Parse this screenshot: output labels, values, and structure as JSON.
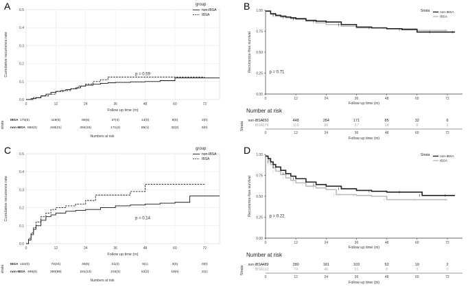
{
  "chart_data": [
    {
      "panel": "A",
      "type": "line",
      "ylabel": "Cumulative recurrence rate",
      "xlabel": "Follow up time (m)",
      "xlim": [
        0,
        78
      ],
      "ylim": [
        0,
        0.5
      ],
      "xticks": [
        0,
        12,
        24,
        36,
        48,
        60,
        72
      ],
      "yticks": [
        "0.0",
        "0.1",
        "0.2",
        "0.3",
        "0.4",
        "0.5"
      ],
      "ytick_values": [
        0,
        0.1,
        0.2,
        0.3,
        0.4,
        0.5
      ],
      "grid": true,
      "legend_title": "group",
      "pvalue": "p = 0.59",
      "series": [
        {
          "name": "non-IBSA",
          "dash": "solid",
          "x": [
            0,
            2,
            4,
            6,
            8,
            10,
            12,
            14,
            16,
            18,
            20,
            22,
            24,
            27,
            30,
            33,
            36,
            42,
            48,
            54,
            60,
            66,
            72,
            78
          ],
          "y": [
            0,
            0.005,
            0.01,
            0.02,
            0.03,
            0.04,
            0.045,
            0.05,
            0.055,
            0.06,
            0.065,
            0.075,
            0.08,
            0.085,
            0.09,
            0.093,
            0.095,
            0.098,
            0.1,
            0.105,
            0.12,
            0.12,
            0.12,
            0.12
          ]
        },
        {
          "name": "IBSA",
          "dash": "dashed",
          "x": [
            0,
            3,
            6,
            9,
            12,
            15,
            18,
            21,
            24,
            27,
            30,
            33,
            36,
            48,
            60,
            72
          ],
          "y": [
            0,
            0.01,
            0.02,
            0.03,
            0.045,
            0.05,
            0.06,
            0.075,
            0.085,
            0.1,
            0.11,
            0.125,
            0.125,
            0.125,
            0.125,
            0.125
          ]
        }
      ],
      "risk_table": {
        "axis_label": "strata",
        "title": "Numbers at risk",
        "rows": [
          {
            "name": "IBSA",
            "first": "176(0)",
            "values": [
              "119(5)",
              "86(5)",
              "37(4)",
              "14(0)",
              "8(0)",
              "2(0)"
            ]
          },
          {
            "name": "non-IBSA",
            "first": "650(0)",
            "values": [
              "448(21)",
              "284(18)",
              "171(2)",
              "85(1)",
              "32(2)",
              "6(0)"
            ]
          }
        ]
      }
    },
    {
      "panel": "B",
      "type": "line",
      "ylabel": "Recurrence-free survival",
      "xlabel": "Follow up time (m)",
      "xlim": [
        0,
        78
      ],
      "ylim": [
        0,
        1
      ],
      "xticks": [
        0,
        12,
        24,
        36,
        48,
        60,
        72
      ],
      "yticks": [
        "0.00",
        "0.25",
        "0.50",
        "0.75",
        "1.00"
      ],
      "ytick_values": [
        0,
        0.25,
        0.5,
        0.75,
        1
      ],
      "legend_title": "Strata",
      "pvalue": "p = 0.71",
      "series": [
        {
          "name": "non-IBSA",
          "color": "#222222",
          "x": [
            0,
            2,
            4,
            6,
            8,
            10,
            12,
            16,
            20,
            24,
            30,
            36,
            42,
            48,
            54,
            60,
            66,
            72,
            75
          ],
          "y": [
            0.99,
            0.96,
            0.94,
            0.93,
            0.92,
            0.91,
            0.9,
            0.88,
            0.87,
            0.86,
            0.83,
            0.8,
            0.79,
            0.78,
            0.77,
            0.74,
            0.74,
            0.74,
            0.74
          ]
        },
        {
          "name": "IBSA",
          "color": "#bbbbbb",
          "x": [
            0,
            2,
            4,
            6,
            8,
            10,
            12,
            16,
            20,
            24,
            30,
            36,
            48,
            60,
            72
          ],
          "y": [
            0.99,
            0.95,
            0.93,
            0.92,
            0.91,
            0.9,
            0.89,
            0.87,
            0.85,
            0.83,
            0.81,
            0.79,
            0.78,
            0.76,
            0.76
          ]
        }
      ],
      "risk_table": {
        "title": "Number at risk",
        "axis_label": "Strata",
        "xlabel": "Follow up time (m)",
        "rows": [
          {
            "name": "non-IBSA",
            "color": "#222222",
            "values": [
              "650",
              "448",
              "284",
              "171",
              "85",
              "32",
              "6"
            ]
          },
          {
            "name": "IBSA",
            "color": "#aaaaaa",
            "values": [
              "176",
              "119",
              "86",
              "37",
              "14",
              "8",
              "2"
            ]
          }
        ]
      }
    },
    {
      "panel": "C",
      "type": "line",
      "ylabel": "Cumulative recurrence rate",
      "xlabel": "Follow up time (m)",
      "xlim": [
        0,
        78
      ],
      "ylim": [
        0,
        0.5
      ],
      "xticks": [
        0,
        12,
        24,
        36,
        48,
        60,
        72
      ],
      "yticks": [
        "0.0",
        "0.1",
        "0.2",
        "0.3",
        "0.4",
        "0.5"
      ],
      "ytick_values": [
        0,
        0.1,
        0.2,
        0.3,
        0.4,
        0.5
      ],
      "grid": true,
      "legend_title": "group",
      "pvalue": "p = 0.14",
      "series": [
        {
          "name": "non-IBSA",
          "dash": "solid",
          "x": [
            0,
            1,
            2,
            3,
            4,
            6,
            8,
            10,
            12,
            16,
            20,
            24,
            30,
            36,
            42,
            48,
            54,
            60,
            66,
            72,
            78
          ],
          "y": [
            0,
            0.02,
            0.05,
            0.08,
            0.1,
            0.13,
            0.15,
            0.16,
            0.17,
            0.18,
            0.185,
            0.19,
            0.2,
            0.21,
            0.215,
            0.22,
            0.225,
            0.23,
            0.265,
            0.265,
            0.265
          ]
        },
        {
          "name": "IBSA",
          "dash": "dashed",
          "x": [
            0,
            1,
            2,
            3,
            4,
            6,
            8,
            10,
            12,
            16,
            20,
            24,
            28,
            30,
            36,
            42,
            48,
            54,
            60,
            66,
            72
          ],
          "y": [
            0,
            0.03,
            0.06,
            0.09,
            0.12,
            0.15,
            0.17,
            0.19,
            0.2,
            0.21,
            0.22,
            0.24,
            0.27,
            0.27,
            0.27,
            0.29,
            0.33,
            0.33,
            0.33,
            0.33,
            0.33
          ]
        }
      ],
      "risk_table": {
        "axis_label": "strata",
        "title": "Numbers at risk",
        "rows": [
          {
            "name": "IBSA",
            "first": "132(0)",
            "values": [
              "74(24)",
              "46(5)",
              "21(2)",
              "8(1)",
              "3(0)",
              "0(0)"
            ]
          },
          {
            "name": "non-IBSA",
            "first": "489(0)",
            "values": [
              "280(88)",
              "181(13)",
              "103(3)",
              "52(2)",
              "19(0)",
              "2(1)"
            ]
          }
        ]
      }
    },
    {
      "panel": "D",
      "type": "line",
      "ylabel": "Recurrence-free survival",
      "xlabel": "Follow up time (m)",
      "xlim": [
        0,
        78
      ],
      "ylim": [
        0,
        1
      ],
      "xticks": [
        0,
        12,
        24,
        36,
        48,
        60,
        72
      ],
      "yticks": [
        "0.00",
        "0.25",
        "0.50",
        "0.75",
        "1.00"
      ],
      "ytick_values": [
        0,
        0.25,
        0.5,
        0.75,
        1
      ],
      "legend_title": "Strata",
      "pvalue": "p = 0.22",
      "series": [
        {
          "name": "non-IBSA",
          "color": "#222222",
          "x": [
            0,
            1,
            2,
            3,
            4,
            6,
            8,
            10,
            12,
            16,
            20,
            24,
            30,
            36,
            42,
            48,
            54,
            60,
            62,
            66,
            72,
            75
          ],
          "y": [
            0.98,
            0.95,
            0.91,
            0.88,
            0.85,
            0.81,
            0.77,
            0.74,
            0.71,
            0.67,
            0.64,
            0.62,
            0.59,
            0.57,
            0.56,
            0.55,
            0.55,
            0.55,
            0.51,
            0.51,
            0.51,
            0.51
          ]
        },
        {
          "name": "IBSA",
          "color": "#bbbbbb",
          "x": [
            0,
            1,
            2,
            3,
            4,
            6,
            8,
            10,
            12,
            16,
            20,
            24,
            28,
            30,
            36,
            42,
            48,
            54,
            60,
            66,
            72
          ],
          "y": [
            0.98,
            0.93,
            0.88,
            0.84,
            0.8,
            0.76,
            0.72,
            0.69,
            0.66,
            0.62,
            0.6,
            0.58,
            0.52,
            0.52,
            0.51,
            0.5,
            0.46,
            0.46,
            0.46,
            0.46,
            0.46
          ]
        }
      ],
      "risk_table": {
        "title": "Number at risk",
        "axis_label": "Strata",
        "xlabel": "Follow up time (m)",
        "rows": [
          {
            "name": "non-IBSA",
            "color": "#222222",
            "values": [
              "489",
              "280",
              "181",
              "103",
              "52",
              "19",
              "2"
            ]
          },
          {
            "name": "IBSA",
            "color": "#aaaaaa",
            "values": [
              "132",
              "74",
              "46",
              "21",
              "8",
              "3",
              "0"
            ]
          }
        ]
      }
    }
  ]
}
